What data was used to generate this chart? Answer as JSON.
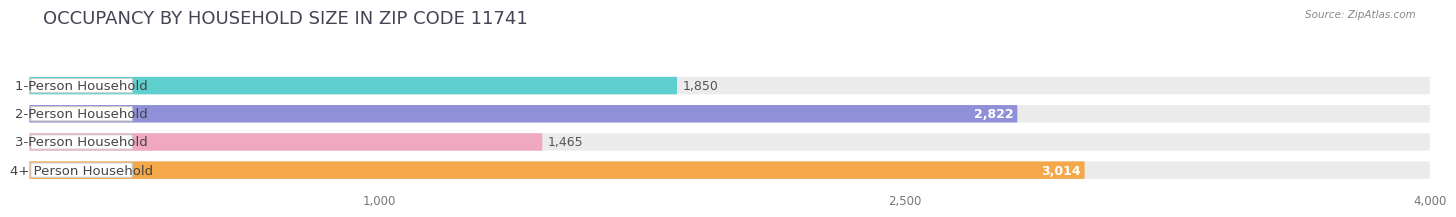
{
  "title": "OCCUPANCY BY HOUSEHOLD SIZE IN ZIP CODE 11741",
  "source": "Source: ZipAtlas.com",
  "categories": [
    "1-Person Household",
    "2-Person Household",
    "3-Person Household",
    "4+ Person Household"
  ],
  "values": [
    1850,
    2822,
    1465,
    3014
  ],
  "bar_colors": [
    "#5ecfcf",
    "#9090d8",
    "#f0a8c0",
    "#f5a84a"
  ],
  "value_inside": [
    false,
    true,
    false,
    true
  ],
  "xlim": [
    0,
    4000
  ],
  "xticks": [
    1000,
    2500,
    4000
  ],
  "xtick_labels": [
    "1,000",
    "2,500",
    "4,000"
  ],
  "background_color": "#ffffff",
  "bar_bg_color": "#ebebeb",
  "title_fontsize": 13,
  "label_fontsize": 9.5,
  "value_fontsize": 9,
  "bar_height": 0.62,
  "pill_bg": "#ffffff"
}
